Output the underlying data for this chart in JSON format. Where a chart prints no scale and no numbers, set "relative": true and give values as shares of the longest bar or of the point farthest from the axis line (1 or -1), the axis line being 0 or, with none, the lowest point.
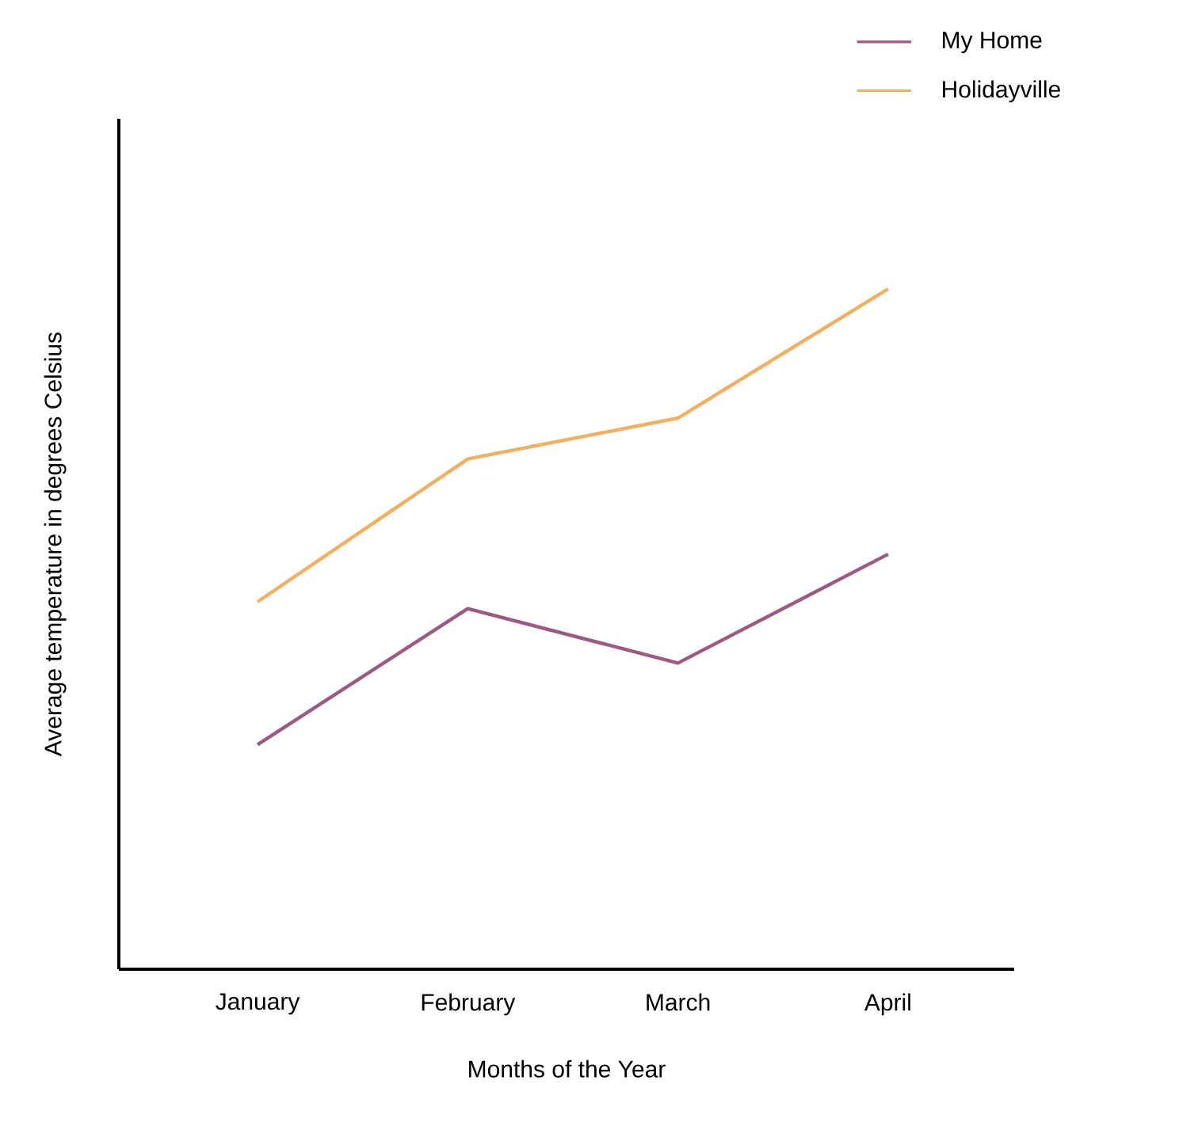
{
  "chart_data": {
    "type": "line",
    "xlabel": "Months of the Year",
    "ylabel": "Average temperature in degrees Celsius",
    "categories": [
      "January",
      "February",
      "March",
      "April"
    ],
    "relative": true,
    "legend": "top right",
    "marker": "none",
    "line_style": "solid",
    "series": [
      {
        "name": "My Home",
        "color": "#9b5a80",
        "values": [
          0.33,
          0.53,
          0.45,
          0.61
        ]
      },
      {
        "name": "Holidayville",
        "color": "#f0b060",
        "values": [
          0.54,
          0.75,
          0.81,
          1
        ]
      }
    ]
  }
}
